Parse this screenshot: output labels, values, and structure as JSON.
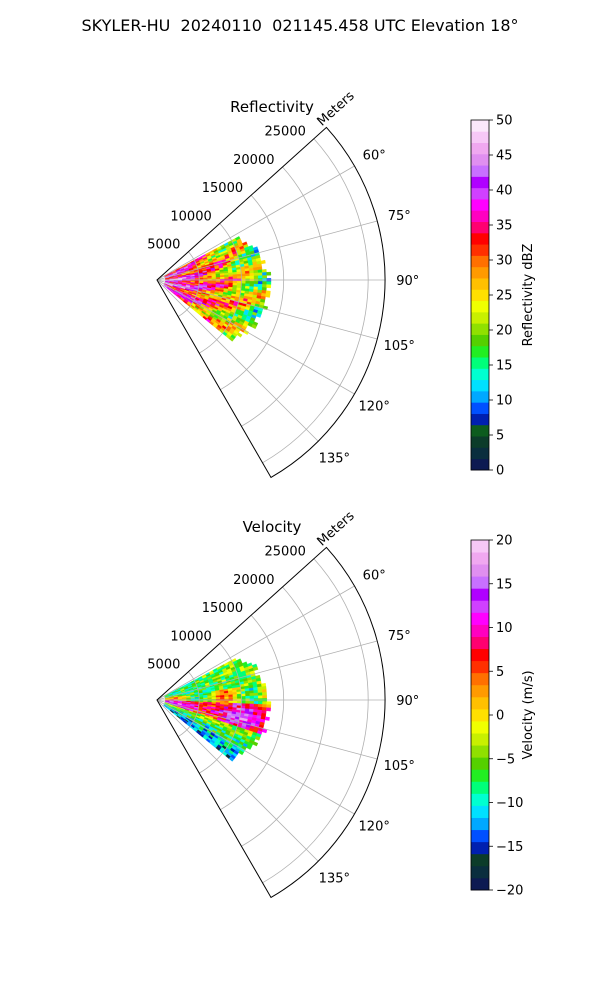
{
  "suptitle": "SKYLER-HU  20240110  021145.458 UTC Elevation 18°",
  "chart_data": [
    {
      "type": "heatmap",
      "subtype": "polar-sector (PPI radar scan)",
      "title": "Reflectivity",
      "range_label": "Meters",
      "range_ticks": [
        5000,
        10000,
        15000,
        20000,
        25000
      ],
      "range_tick_labels": [
        "5000",
        "10000",
        "15000",
        "20000",
        "25000"
      ],
      "range_max": 27000,
      "azimuth_range_deg": [
        48,
        150
      ],
      "azimuth_ticks": [
        60,
        75,
        90,
        105,
        120,
        135
      ],
      "azimuth_tick_labels": [
        "60°",
        "75°",
        "90°",
        "105°",
        "120°",
        "135°"
      ],
      "grid": true,
      "data_extent": {
        "azimuth_deg": [
          62,
          128
        ],
        "range_m_min": 1000,
        "range_m_max_approx": 13000
      },
      "colorbar": {
        "label": "Reflectivity dBZ",
        "min": 0,
        "max": 50,
        "ticks": [
          0,
          5,
          10,
          15,
          20,
          25,
          30,
          35,
          40,
          45,
          50
        ],
        "tick_labels": [
          "0",
          "5",
          "10",
          "15",
          "20",
          "25",
          "30",
          "35",
          "40",
          "45",
          "50"
        ],
        "colors": [
          "#0d1a52",
          "#0a2e3e",
          "#0c3c2a",
          "#0d5c1e",
          "#0020b0",
          "#0050ff",
          "#00a8ff",
          "#00e0ff",
          "#00ffd0",
          "#00ff7a",
          "#22ee22",
          "#55d000",
          "#90e000",
          "#c8f000",
          "#f0ff00",
          "#ffe000",
          "#ffc000",
          "#ff9a00",
          "#ff7000",
          "#ff3000",
          "#ff0000",
          "#ff0070",
          "#ff00c0",
          "#ff00ff",
          "#d040ff",
          "#b000ff",
          "#c870ff",
          "#e08ff0",
          "#f0a8f0",
          "#f7c8f7",
          "#fce8fc"
        ]
      },
      "field_description": "high values (35–45 dBZ) near the radar and along the central azimuths, decreasing to 15–20 dBZ at the outer edge near 12–13 km"
    },
    {
      "type": "heatmap",
      "subtype": "polar-sector (PPI radar scan)",
      "title": "Velocity",
      "range_label": "Meters",
      "range_ticks": [
        5000,
        10000,
        15000,
        20000,
        25000
      ],
      "range_tick_labels": [
        "5000",
        "10000",
        "15000",
        "20000",
        "25000"
      ],
      "range_max": 27000,
      "azimuth_range_deg": [
        48,
        150
      ],
      "azimuth_ticks": [
        60,
        75,
        90,
        105,
        120,
        135
      ],
      "azimuth_tick_labels": [
        "60°",
        "75°",
        "90°",
        "105°",
        "120°",
        "135°"
      ],
      "grid": true,
      "data_extent": {
        "azimuth_deg": [
          62,
          128
        ],
        "range_m_min": 1000,
        "range_m_max_approx": 13000
      },
      "colorbar": {
        "label": "Velocity (m/s)",
        "min": -20,
        "max": 20,
        "ticks": [
          -20,
          -15,
          -10,
          -5,
          0,
          5,
          10,
          15,
          20
        ],
        "tick_labels": [
          "−20",
          "−15",
          "−10",
          "−5",
          "0",
          "5",
          "10",
          "15",
          "20"
        ],
        "colors": [
          "#0d1a52",
          "#0a2e3e",
          "#0c3c2a",
          "#0020b0",
          "#0050ff",
          "#00a8ff",
          "#00e0ff",
          "#00ffd0",
          "#00ff7a",
          "#22ee22",
          "#55d000",
          "#90e000",
          "#c8f000",
          "#f0ff00",
          "#ffe000",
          "#ffc000",
          "#ff9a00",
          "#ff7000",
          "#ff3000",
          "#ff0000",
          "#ff0070",
          "#ff00c0",
          "#ff00ff",
          "#d040ff",
          "#b000ff",
          "#c870ff",
          "#e08ff0",
          "#f0a8f0",
          "#f7c8f7"
        ]
      },
      "field_description": "outbound (red/magenta, +8 to +15 m/s) band along 95–105° azimuth, inbound (green/cyan, −5 to −12 m/s) at the northern and southern flanks, near-zero (yellow) between"
    }
  ]
}
